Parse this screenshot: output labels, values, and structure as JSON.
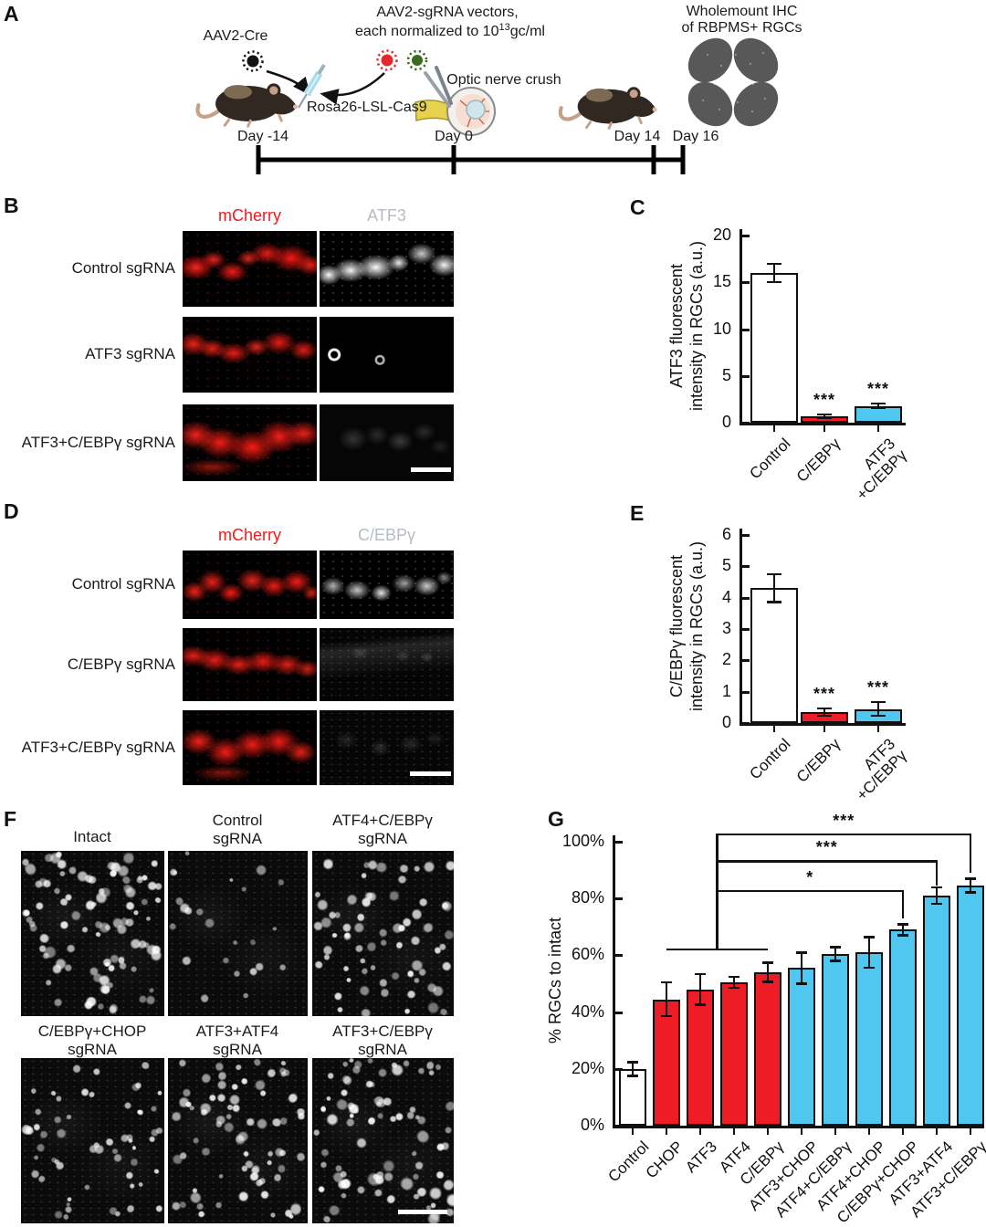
{
  "panels": {
    "a": {
      "letter": "A",
      "aav2_cre_label": "AAV2-Cre",
      "sgrna_label_line1": "AAV2-sgRNA vectors,",
      "sgrna_label_line2_pre": "each normalized to 10",
      "sgrna_label_exp": "13",
      "sgrna_label_line2_post": "gc/ml",
      "rosa_label": "Rosa26-LSL-Cas9",
      "crush_label": "Optic nerve crush",
      "ihc_label_line1": "Wholemount IHC",
      "ihc_label_line2": "of RBPMS+ RGCs",
      "day_labels": [
        "Day -14",
        "Day 0",
        "Day 14",
        "Day 16"
      ]
    },
    "b": {
      "letter": "B",
      "col_headers": [
        "mCherry",
        "ATF3"
      ],
      "row_labels": [
        "Control sgRNA",
        "ATF3 sgRNA",
        "ATF3+C/EBPγ sgRNA"
      ]
    },
    "c": {
      "letter": "C"
    },
    "d": {
      "letter": "D",
      "col_headers": [
        "mCherry",
        "C/EBPγ"
      ],
      "row_labels": [
        "Control sgRNA",
        "C/EBPγ sgRNA",
        "ATF3+C/EBPγ sgRNA"
      ]
    },
    "e": {
      "letter": "E"
    },
    "f": {
      "letter": "F",
      "image_labels": [
        "Intact",
        "Control\nsgRNA",
        "ATF4+C/EBPγ\nsgRNA",
        "C/EBPγ+CHOP\nsgRNA",
        "ATF3+ATF4\nsgRNA",
        "ATF3+C/EBPγ\nsgRNA"
      ]
    },
    "g": {
      "letter": "G"
    }
  },
  "colors": {
    "mcherry_text": "#f21a1a",
    "antibody_text": "#b6bcc2",
    "bar_red": "#ee1c24",
    "bar_cyan": "#4fc7ee",
    "bar_white": "#ffffff"
  },
  "chart_data": [
    {
      "panel": "C",
      "type": "bar",
      "categories": [
        "Control",
        "C/EBPγ",
        "ATF3\n+C/EBPγ"
      ],
      "values": [
        16,
        0.7,
        1.8
      ],
      "errors": [
        1,
        0.2,
        0.25
      ],
      "bar_colors": [
        "#ffffff",
        "#ee1c24",
        "#4fc7ee"
      ],
      "sig_above_bar": [
        "",
        "***",
        "***"
      ],
      "ylabel_line1": "ATF3 fluorescent",
      "ylabel_line2": "intensity in RGCs (a.u.)",
      "ytick_values": [
        0,
        5,
        10,
        15,
        20
      ],
      "ytick_labels": [
        "0",
        "5",
        "10",
        "15",
        "20"
      ],
      "ylim": [
        0,
        20
      ]
    },
    {
      "panel": "E",
      "type": "bar",
      "categories": [
        "Control",
        "C/EBPγ",
        "ATF3\n+C/EBPγ"
      ],
      "values": [
        4.3,
        0.35,
        0.45
      ],
      "errors": [
        0.45,
        0.12,
        0.22
      ],
      "bar_colors": [
        "#ffffff",
        "#ee1c24",
        "#4fc7ee"
      ],
      "sig_above_bar": [
        "",
        "***",
        "***"
      ],
      "ylabel_line1": "C/EBPγ fluorescent",
      "ylabel_line2": "intensity in RGCs (a.u.)",
      "ytick_values": [
        0,
        1,
        2,
        3,
        4,
        5,
        6
      ],
      "ytick_labels": [
        "0",
        "1",
        "2",
        "3",
        "4",
        "5",
        "6"
      ],
      "ylim": [
        0,
        6
      ]
    },
    {
      "panel": "G",
      "type": "bar",
      "categories": [
        "Control",
        "CHOP",
        "ATF3",
        "ATF4",
        "C/EBPγ",
        "ATF3+CHOP",
        "ATF4+C/EBPγ",
        "ATF4+CHOP",
        "C/EBPγ+CHOP",
        "ATF3+ATF4",
        "ATF3+C/EBPγ"
      ],
      "values": [
        20,
        44.5,
        48,
        50.5,
        54,
        55.5,
        60.5,
        61,
        69,
        81,
        84.5
      ],
      "errors": [
        2.5,
        6,
        5.5,
        2,
        3.5,
        5.5,
        2.5,
        5.5,
        2,
        3,
        2.5
      ],
      "bar_colors": [
        "#ffffff",
        "#ee1c24",
        "#ee1c24",
        "#ee1c24",
        "#ee1c24",
        "#4fc7ee",
        "#4fc7ee",
        "#4fc7ee",
        "#4fc7ee",
        "#4fc7ee",
        "#4fc7ee"
      ],
      "ylabel": "% RGCs to intact",
      "ytick_values": [
        0,
        20,
        40,
        60,
        80,
        100
      ],
      "ytick_labels": [
        "0%",
        "20%",
        "40%",
        "60%",
        "80%",
        "100%"
      ],
      "ylim": [
        0,
        100
      ],
      "group_line": {
        "span": [
          1,
          4
        ],
        "pct": 62.5
      },
      "significance": [
        {
          "label": "*",
          "to_bar": 8,
          "line_pct": 83,
          "drop_pct": 73
        },
        {
          "label": "***",
          "to_bar": 9,
          "line_pct": 93.5,
          "drop_pct": 84.5
        },
        {
          "label": "***",
          "to_bar": 10,
          "line_pct": 103,
          "drop_pct": 89
        }
      ]
    }
  ]
}
